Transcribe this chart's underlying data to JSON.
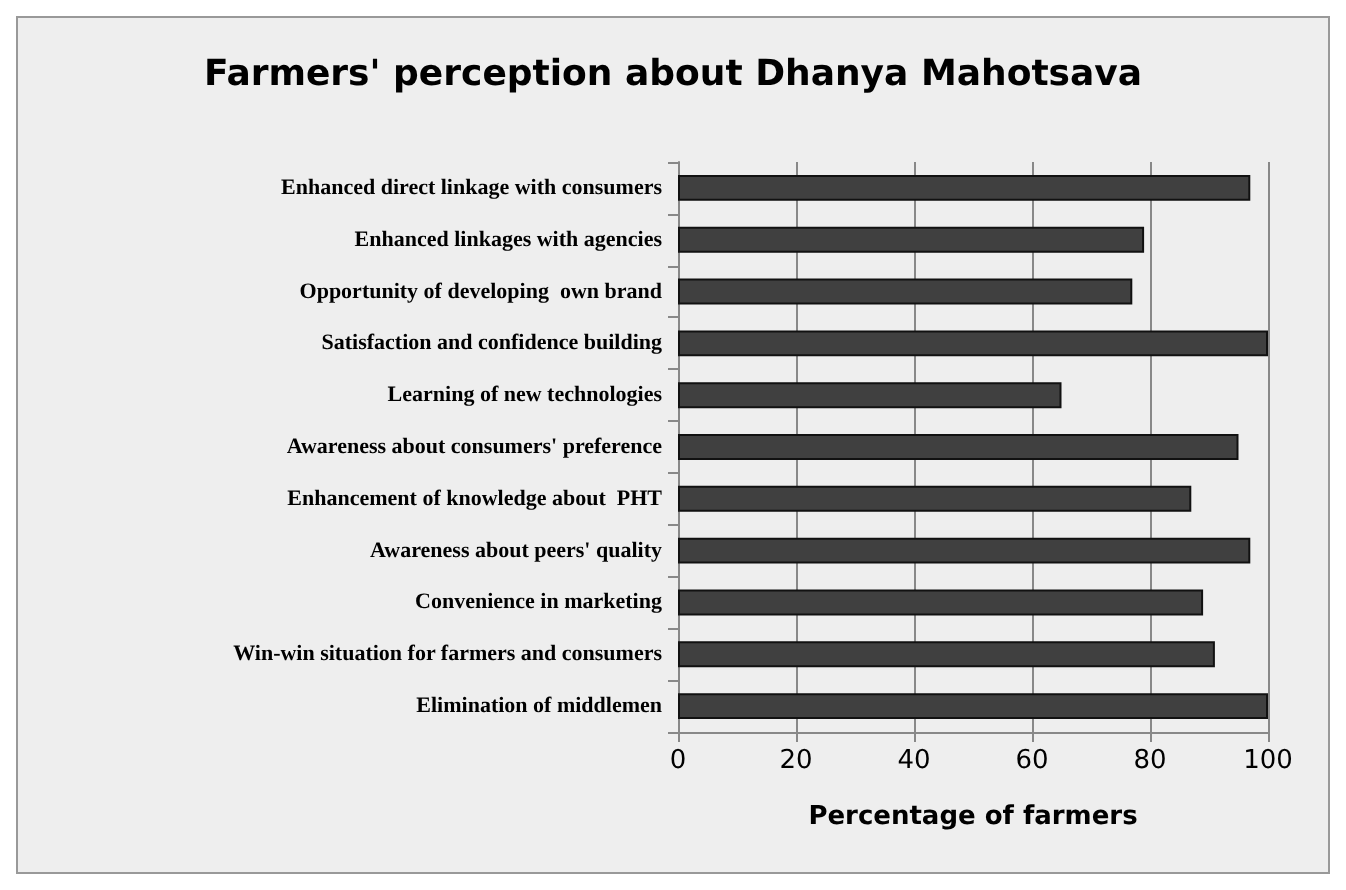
{
  "chart_data": {
    "type": "bar",
    "orientation": "horizontal",
    "title": "Farmers' perception about Dhanya Mahotsava",
    "xlabel": "Percentage of farmers",
    "categories": [
      "Enhanced direct linkage with consumers",
      "Enhanced linkages with agencies",
      "Opportunity of developing  own brand",
      "Satisfaction and confidence building",
      "Learning of new technologies",
      "Awareness about consumers' preference",
      "Enhancement of knowledge about  PHT",
      "Awareness about peers' quality",
      "Convenience in marketing",
      "Win-win situation for farmers and consumers",
      "Elimination of middlemen"
    ],
    "values": [
      97,
      79,
      77,
      100,
      65,
      95,
      87,
      97,
      89,
      91,
      100
    ],
    "color": "#404040",
    "xlim": [
      0,
      100
    ],
    "xticks": [
      0,
      20,
      40,
      60,
      80,
      100
    ],
    "grid": "x"
  }
}
